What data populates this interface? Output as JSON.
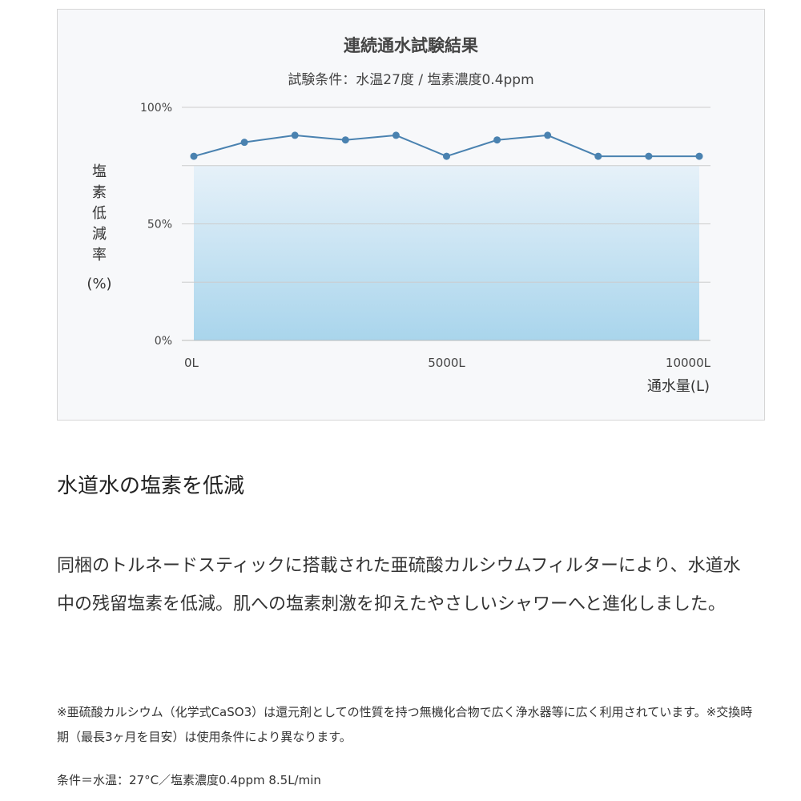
{
  "chart_data": {
    "type": "area",
    "title": "連続通水試験結果",
    "subtitle": "試験条件：水温27度 / 塩素濃度0.4ppm",
    "ylabel_chars": [
      "塩",
      "素",
      "低",
      "減",
      "率"
    ],
    "ylabel_unit": "(%)",
    "xlabel": "通水量(L)",
    "yticks": [
      "100%",
      "50%",
      "0%"
    ],
    "xticks": [
      "0L",
      "5000L",
      "10000L"
    ],
    "ylim": [
      0,
      100
    ],
    "xlim": [
      0,
      10000
    ],
    "grid": true,
    "x": [
      0,
      1000,
      2000,
      3000,
      4000,
      5000,
      6000,
      7000,
      8000,
      9000,
      10000
    ],
    "series": [
      {
        "values": [
          79,
          85,
          88,
          86,
          88,
          79,
          86,
          88,
          79,
          79,
          79
        ]
      }
    ],
    "colors": {
      "line": "#4a82b0",
      "fill_top": "#e6f1f9",
      "fill_bottom": "#a9d5ec",
      "grid": "#cccccc",
      "axis": "#bbbbbb"
    }
  },
  "content": {
    "heading": "水道水の塩素を低減",
    "body": "同梱のトルネードスティックに搭載された亜硫酸カルシウムフィルターにより、水道水中の残留塩素を低減。肌への塩素刺激を抑えたやさしいシャワーへと進化しました。",
    "note": "※亜硫酸カルシウム（化学式CaSO3）は還元剤としての性質を持つ無機化合物で広く浄水器等に広く利用されています。※交換時期（最長3ヶ月を目安）は使用条件により異なります。",
    "conditions": "条件＝水温：27°C／塩素濃度0.4ppm 8.5L/min"
  }
}
